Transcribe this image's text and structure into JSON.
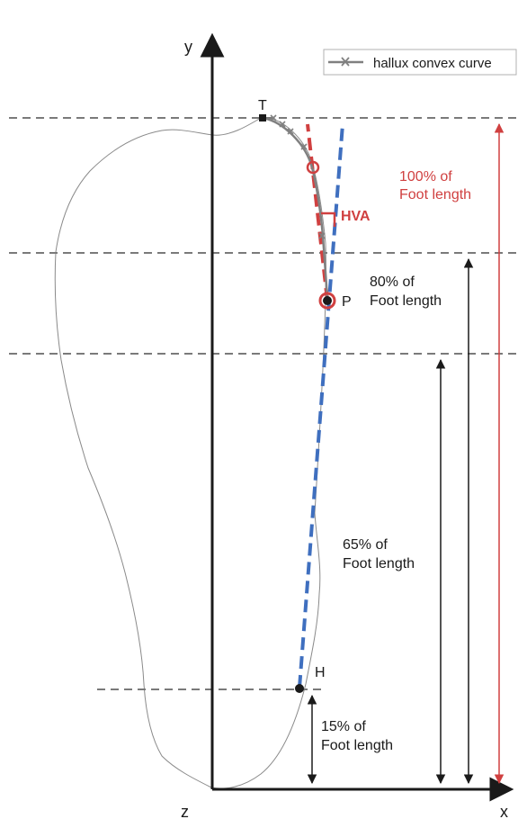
{
  "axes": {
    "y_label": "y",
    "x_label": "x",
    "z_label": "z"
  },
  "legend": {
    "label": "hallux convex curve"
  },
  "points": {
    "T": "T",
    "P": "P",
    "H": "H"
  },
  "angle_label": "HVA",
  "measures": {
    "m100": [
      "100% of",
      "Foot length"
    ],
    "m80": [
      "80% of",
      "Foot length"
    ],
    "m65": [
      "65% of",
      "Foot length"
    ],
    "m15": [
      "15% of",
      "Foot length"
    ]
  },
  "colors": {
    "axis": "#1a1a1a",
    "dashed_guides": "#7a7a7a",
    "foot_outline": "#8a8a8a",
    "hallux_curve": "#808080",
    "hva_line": "#d04040",
    "axis_line_blue": "#3f6fbf",
    "arrow_red": "#d04040",
    "arrow_black": "#1a1a1a"
  }
}
